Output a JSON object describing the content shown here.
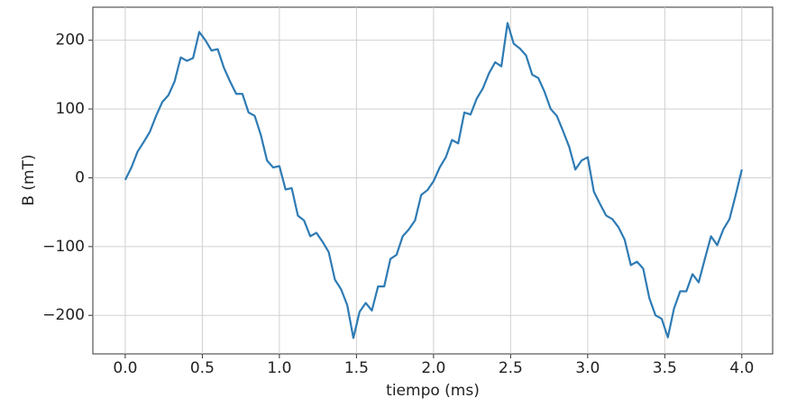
{
  "chart_data": {
    "type": "line",
    "x_label": "tiempo (ms)",
    "y_label": "B (mT)",
    "x": [
      0,
      0.04,
      0.08,
      0.12,
      0.16,
      0.2,
      0.24,
      0.28,
      0.32,
      0.36,
      0.4,
      0.44,
      0.48,
      0.52,
      0.56,
      0.6,
      0.64,
      0.68,
      0.72,
      0.76,
      0.8,
      0.84,
      0.88,
      0.92,
      0.96,
      1,
      1.04,
      1.08,
      1.12,
      1.16,
      1.2,
      1.24,
      1.28,
      1.32,
      1.36,
      1.4,
      1.44,
      1.48,
      1.52,
      1.56,
      1.6,
      1.64,
      1.68,
      1.72,
      1.76,
      1.8,
      1.84,
      1.88,
      1.92,
      1.96,
      2,
      2.04,
      2.08,
      2.12,
      2.16,
      2.2,
      2.24,
      2.28,
      2.32,
      2.36,
      2.4,
      2.44,
      2.48,
      2.52,
      2.56,
      2.6,
      2.64,
      2.68,
      2.72,
      2.76,
      2.8,
      2.84,
      2.88,
      2.92,
      2.96,
      3,
      3.04,
      3.08,
      3.12,
      3.16,
      3.2,
      3.24,
      3.28,
      3.32,
      3.36,
      3.4,
      3.44,
      3.48,
      3.52,
      3.56,
      3.6,
      3.64,
      3.68,
      3.72,
      3.76,
      3.8,
      3.84,
      3.88,
      3.92,
      3.96,
      4
    ],
    "series": [
      {
        "color": "#2e7bb4",
        "values": [
          -3,
          15,
          38,
          52,
          67,
          90,
          110,
          120,
          140,
          175,
          170,
          174,
          212,
          200,
          185,
          187,
          160,
          140,
          122,
          122,
          95,
          90,
          62,
          25,
          15,
          17,
          -17,
          -15,
          -55,
          -62,
          -85,
          -80,
          -93,
          -108,
          -148,
          -162,
          -185,
          -233,
          -195,
          -182,
          -193,
          -158,
          -158,
          -118,
          -112,
          -85,
          -75,
          -62,
          -25,
          -18,
          -5,
          15,
          30,
          55,
          50,
          95,
          92,
          115,
          130,
          152,
          168,
          162,
          225,
          195,
          188,
          178,
          150,
          145,
          125,
          100,
          90,
          68,
          45,
          12,
          25,
          30,
          -20,
          -38,
          -55,
          -60,
          -72,
          -90,
          -127,
          -122,
          -132,
          -175,
          -200,
          -205,
          -232,
          -190,
          -165,
          -165,
          -140,
          -152,
          -118,
          -85,
          -98,
          -75,
          -60,
          -25,
          12
        ]
      }
    ],
    "xlim": [
      -0.21,
      4.2
    ],
    "ylim": [
      -256,
      248
    ],
    "xticks": [
      {
        "value": 0,
        "label": "0.0"
      },
      0.5,
      {
        "value": 1,
        "label": "1.0"
      },
      1.5,
      {
        "value": 2,
        "label": "2.0"
      },
      2.5,
      {
        "value": 3,
        "label": "3.0"
      },
      3.5,
      {
        "value": 4,
        "label": "4.0"
      }
    ],
    "yticks": [
      {
        "value": -200,
        "label": "−200"
      },
      {
        "value": -100,
        "label": "−100"
      },
      0,
      100,
      200
    ],
    "grid": true
  }
}
